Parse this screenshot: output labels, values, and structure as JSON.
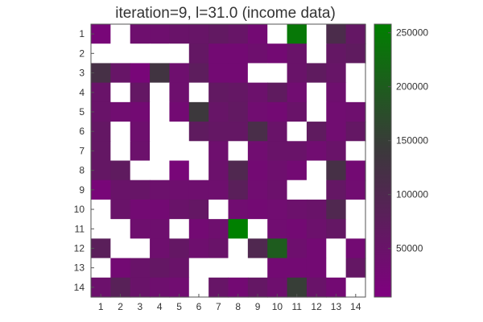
{
  "chart_data": {
    "type": "heatmap",
    "title": "iteration=9, l=31.0 (income data)",
    "x_categories": [
      "1",
      "2",
      "3",
      "4",
      "5",
      "6",
      "7",
      "8",
      "9",
      "10",
      "11",
      "12",
      "13",
      "14"
    ],
    "y_categories": [
      "1",
      "2",
      "3",
      "4",
      "5",
      "6",
      "7",
      "8",
      "9",
      "10",
      "11",
      "12",
      "13",
      "14"
    ],
    "missing_color": "#ffffff",
    "colorbar": {
      "vmin": 5000,
      "vmax": 258000,
      "ticks": [
        50000,
        100000,
        150000,
        200000,
        250000
      ],
      "tick_labels": [
        "50000",
        "100000",
        "150000",
        "200000",
        "250000"
      ],
      "colormap": [
        "#800080",
        "#3a3a3a",
        "#008000"
      ],
      "colormap_midpoint": 0.55
    },
    "values": [
      [
        20000,
        null,
        40000,
        40000,
        50000,
        55000,
        65000,
        55000,
        30000,
        null,
        245000,
        null,
        110000,
        60000
      ],
      [
        null,
        null,
        null,
        null,
        null,
        60000,
        30000,
        30000,
        40000,
        30000,
        50000,
        null,
        60000,
        70000
      ],
      [
        120000,
        55000,
        20000,
        130000,
        40000,
        75000,
        30000,
        30000,
        null,
        null,
        50000,
        70000,
        55000,
        null
      ],
      [
        50000,
        null,
        60000,
        null,
        40000,
        null,
        65000,
        60000,
        45000,
        70000,
        35000,
        null,
        40000,
        null
      ],
      [
        50000,
        35000,
        30000,
        null,
        30000,
        140000,
        55000,
        65000,
        35000,
        30000,
        50000,
        null,
        35000,
        40000
      ],
      [
        60000,
        null,
        40000,
        null,
        null,
        70000,
        60000,
        60000,
        115000,
        50000,
        null,
        70000,
        35000,
        60000
      ],
      [
        60000,
        null,
        45000,
        null,
        null,
        null,
        40000,
        null,
        35000,
        50000,
        50000,
        35000,
        50000,
        null
      ],
      [
        60000,
        70000,
        null,
        null,
        20000,
        null,
        45000,
        100000,
        30000,
        40000,
        30000,
        null,
        120000,
        30000
      ],
      [
        20000,
        50000,
        55000,
        45000,
        40000,
        40000,
        40000,
        80000,
        35000,
        45000,
        null,
        null,
        60000,
        35000
      ],
      [
        null,
        50000,
        30000,
        30000,
        50000,
        60000,
        null,
        35000,
        30000,
        35000,
        45000,
        50000,
        100000,
        null
      ],
      [
        null,
        null,
        40000,
        40000,
        null,
        30000,
        40000,
        258000,
        null,
        35000,
        30000,
        45000,
        60000,
        null
      ],
      [
        80000,
        null,
        null,
        40000,
        60000,
        40000,
        50000,
        null,
        100000,
        200000,
        40000,
        30000,
        null,
        30000
      ],
      [
        null,
        30000,
        50000,
        60000,
        50000,
        null,
        null,
        null,
        null,
        30000,
        30000,
        30000,
        null,
        60000
      ],
      [
        45000,
        85000,
        50000,
        40000,
        35000,
        null,
        55000,
        30000,
        60000,
        40000,
        150000,
        50000,
        30000,
        null
      ]
    ]
  }
}
